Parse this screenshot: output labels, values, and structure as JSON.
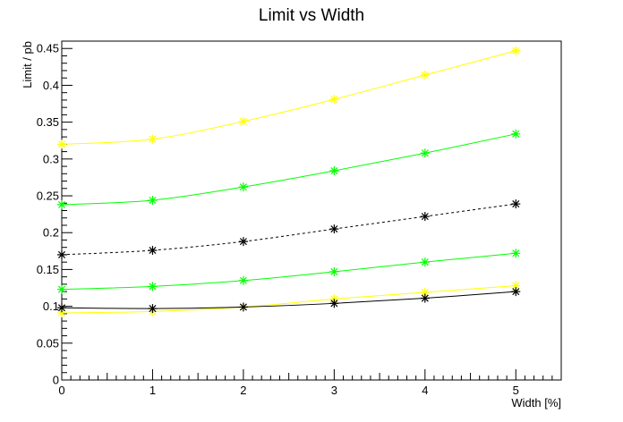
{
  "chart_data": {
    "type": "line",
    "title": "Limit vs Width",
    "xlabel": "Width [%]",
    "ylabel": "Limit / pb",
    "xlim": [
      0,
      5.5
    ],
    "ylim": [
      0,
      0.46
    ],
    "x": [
      0,
      1,
      2,
      3,
      4,
      5
    ],
    "x_ticks": [
      0,
      1,
      2,
      3,
      4,
      5
    ],
    "x_tick_labels": [
      "0",
      "1",
      "2",
      "3",
      "4",
      "5"
    ],
    "y_ticks": [
      0,
      0.05,
      0.1,
      0.15,
      0.2,
      0.25,
      0.3,
      0.35,
      0.4,
      0.45
    ],
    "y_tick_labels": [
      "0",
      "0.05",
      "0.1",
      "0.15",
      "0.2",
      "0.25",
      "0.3",
      "0.35",
      "0.4",
      "0.45"
    ],
    "grid": false,
    "legend": "none",
    "marker": "asterisk",
    "series": [
      {
        "values": [
          0.32,
          0.327,
          0.351,
          0.381,
          0.414,
          0.447
        ],
        "color": "#ffff00",
        "dash": false
      },
      {
        "values": [
          0.238,
          0.244,
          0.262,
          0.284,
          0.308,
          0.334
        ],
        "color": "#00ff00",
        "dash": false
      },
      {
        "values": [
          0.17,
          0.176,
          0.188,
          0.205,
          0.222,
          0.239
        ],
        "color": "#000000",
        "dash": true
      },
      {
        "values": [
          0.123,
          0.127,
          0.135,
          0.147,
          0.16,
          0.172
        ],
        "color": "#00ff00",
        "dash": false
      },
      {
        "values": [
          0.091,
          0.093,
          0.099,
          0.11,
          0.119,
          0.128
        ],
        "color": "#ffff00",
        "dash": false
      },
      {
        "values": [
          0.098,
          0.097,
          0.099,
          0.104,
          0.111,
          0.12
        ],
        "color": "#000000",
        "dash": false
      }
    ]
  }
}
